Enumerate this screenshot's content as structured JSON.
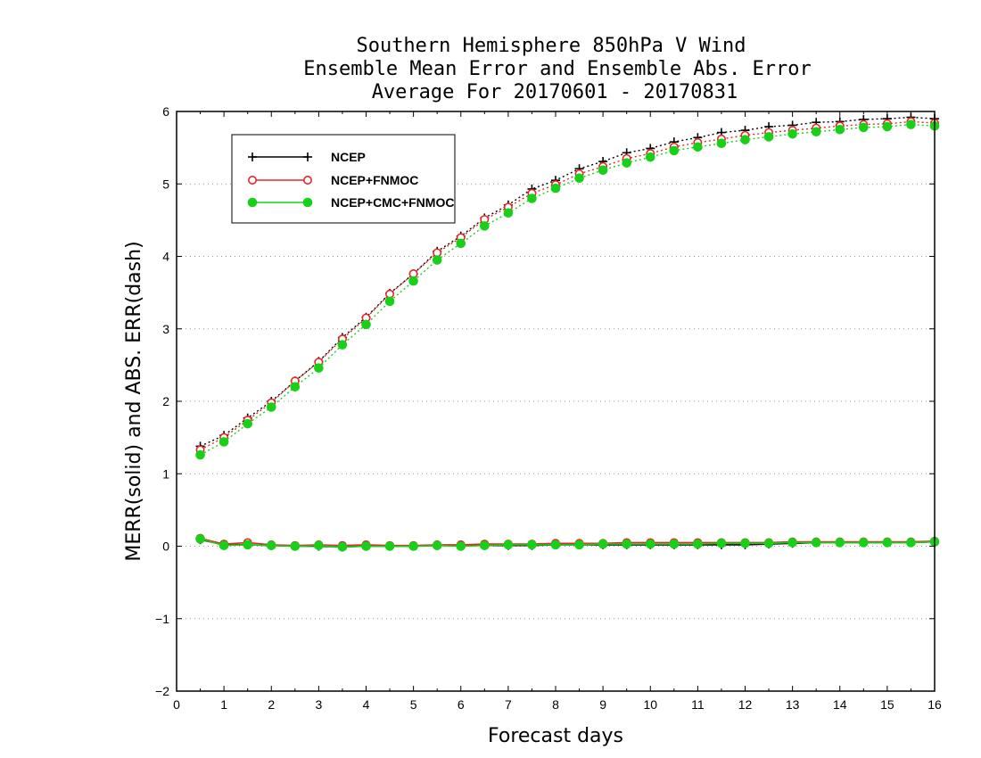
{
  "colors": {
    "NCEP": "#000000",
    "NCEP+FNMOC": "#e8262a",
    "NCEP+CMC+FNMOC": "#18d018",
    "grid": "#999999"
  },
  "chart_data": {
    "type": "line",
    "title_lines": [
      "Southern Hemisphere 850hPa V Wind",
      "Ensemble Mean Error and Ensemble Abs. Error",
      "Average For 20170601 - 20170831"
    ],
    "xlabel": "Forecast days",
    "ylabel": "MERR(solid) and ABS. ERR(dash)",
    "xlim": [
      0,
      16
    ],
    "ylim": [
      -2,
      6
    ],
    "xticks": [
      "0",
      "1",
      "2",
      "3",
      "4",
      "5",
      "6",
      "7",
      "8",
      "9",
      "10",
      "11",
      "12",
      "13",
      "14",
      "15",
      "16"
    ],
    "yticks": [
      "−2",
      "−1",
      "0",
      "1",
      "2",
      "3",
      "4",
      "5",
      "6"
    ],
    "grid": "dotted horizontal",
    "legend_position": "top-left",
    "legend": [
      "NCEP",
      "NCEP+FNMOC",
      "NCEP+CMC+FNMOC"
    ],
    "x": [
      0.5,
      1,
      1.5,
      2,
      2.5,
      3,
      3.5,
      4,
      4.5,
      5,
      5.5,
      6,
      6.5,
      7,
      7.5,
      8,
      8.5,
      9,
      9.5,
      10,
      10.5,
      11,
      11.5,
      12,
      12.5,
      13,
      13.5,
      14,
      14.5,
      15,
      15.5,
      16
    ],
    "series": [
      {
        "name": "NCEP",
        "abs_error": [
          1.38,
          1.53,
          1.77,
          2.0,
          2.28,
          2.55,
          2.88,
          3.16,
          3.49,
          3.76,
          4.07,
          4.28,
          4.53,
          4.71,
          4.93,
          5.05,
          5.21,
          5.31,
          5.43,
          5.49,
          5.58,
          5.64,
          5.71,
          5.74,
          5.79,
          5.81,
          5.85,
          5.86,
          5.89,
          5.9,
          5.92,
          5.9
        ],
        "mean_error": [
          0.09,
          0.02,
          0.02,
          0.01,
          0.0,
          0.0,
          -0.01,
          0.0,
          0.0,
          0.0,
          0.01,
          0.01,
          0.01,
          0.01,
          0.01,
          0.02,
          0.02,
          0.02,
          0.02,
          0.02,
          0.02,
          0.02,
          0.02,
          0.02,
          0.03,
          0.04,
          0.05,
          0.05,
          0.05,
          0.05,
          0.05,
          0.06
        ]
      },
      {
        "name": "NCEP+FNMOC",
        "abs_error": [
          1.33,
          1.5,
          1.74,
          1.98,
          2.28,
          2.54,
          2.86,
          3.15,
          3.48,
          3.76,
          4.05,
          4.26,
          4.51,
          4.68,
          4.87,
          4.99,
          5.14,
          5.24,
          5.35,
          5.42,
          5.51,
          5.57,
          5.62,
          5.67,
          5.71,
          5.74,
          5.77,
          5.8,
          5.82,
          5.83,
          5.86,
          5.84
        ],
        "mean_error": [
          0.11,
          0.03,
          0.05,
          0.02,
          0.01,
          0.02,
          0.01,
          0.02,
          0.01,
          0.01,
          0.02,
          0.02,
          0.03,
          0.03,
          0.03,
          0.04,
          0.04,
          0.04,
          0.05,
          0.05,
          0.05,
          0.05,
          0.05,
          0.05,
          0.05,
          0.06,
          0.06,
          0.06,
          0.06,
          0.06,
          0.06,
          0.07
        ]
      },
      {
        "name": "NCEP+CMC+FNMOC",
        "abs_error": [
          1.26,
          1.44,
          1.69,
          1.92,
          2.2,
          2.46,
          2.78,
          3.06,
          3.38,
          3.66,
          3.95,
          4.18,
          4.42,
          4.6,
          4.8,
          4.94,
          5.08,
          5.19,
          5.29,
          5.37,
          5.46,
          5.51,
          5.56,
          5.61,
          5.65,
          5.69,
          5.72,
          5.75,
          5.78,
          5.79,
          5.82,
          5.8
        ],
        "mean_error": [
          0.1,
          0.01,
          0.02,
          0.01,
          0.0,
          0.01,
          -0.01,
          0.0,
          0.0,
          0.0,
          0.01,
          0.0,
          0.01,
          0.02,
          0.02,
          0.02,
          0.02,
          0.03,
          0.03,
          0.03,
          0.03,
          0.03,
          0.04,
          0.04,
          0.04,
          0.05,
          0.05,
          0.05,
          0.05,
          0.05,
          0.05,
          0.06
        ]
      }
    ]
  }
}
